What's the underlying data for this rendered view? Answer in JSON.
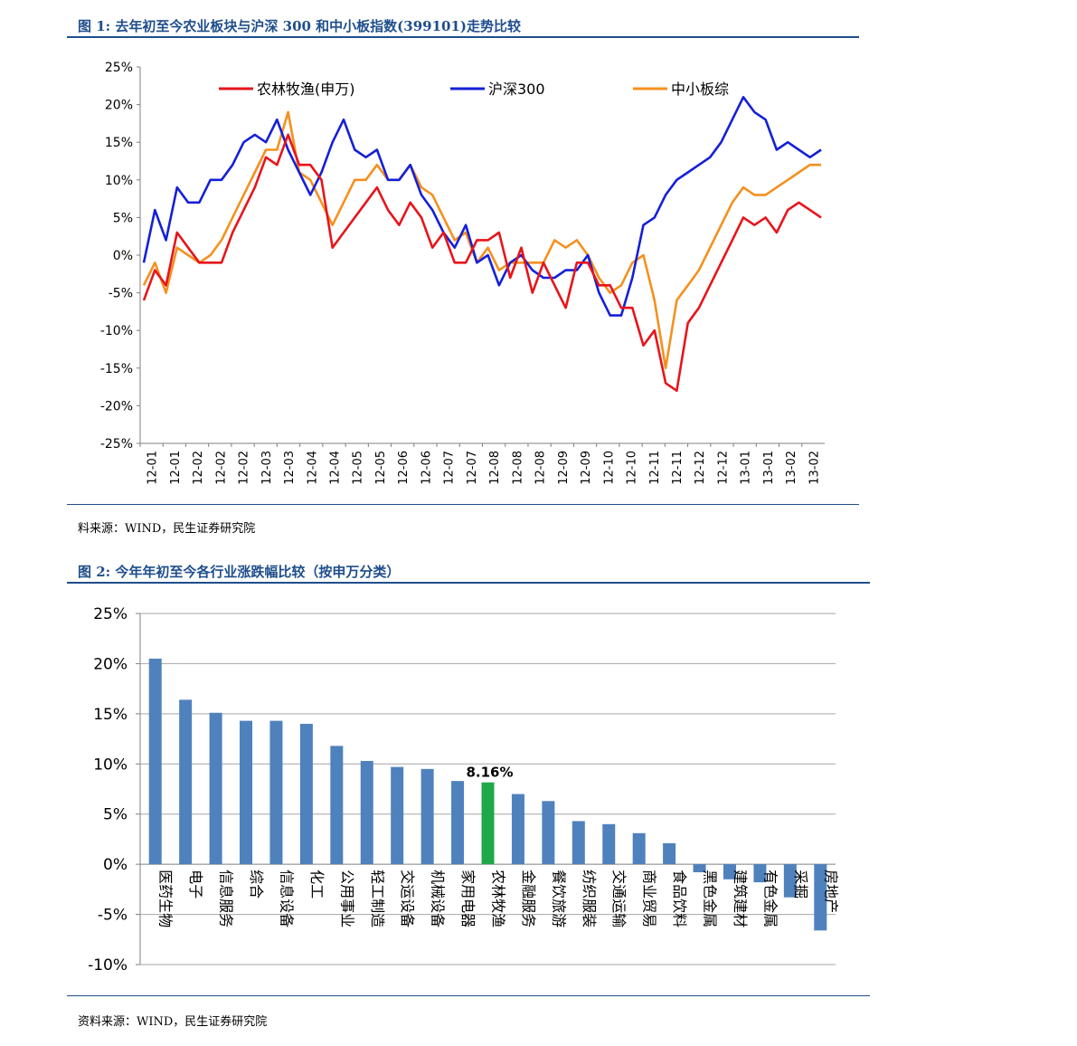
{
  "figure1": {
    "title": "图 1:  去年初至今农业板块与沪深 300 和中小板指数(399101)走势比较",
    "source": "料来源：WIND，民生证券研究院"
  },
  "figure2": {
    "title": "图 2:  今年年初至今各行业涨跌幅比较（按申万分类）",
    "source": "资料来源：WIND，民生证券研究院"
  },
  "chart_data": [
    {
      "type": "line",
      "ylim": [
        -25,
        25
      ],
      "y_ticks": [
        "25%",
        "20%",
        "15%",
        "10%",
        "5%",
        "0%",
        "-5%",
        "-10%",
        "-15%",
        "-20%",
        "-25%"
      ],
      "x_ticks": [
        "12-01",
        "12-01",
        "12-02",
        "12-02",
        "12-02",
        "12-03",
        "12-03",
        "12-04",
        "12-04",
        "12-05",
        "12-05",
        "12-06",
        "12-06",
        "12-07",
        "12-07",
        "12-08",
        "12-08",
        "12-08",
        "12-09",
        "12-09",
        "12-10",
        "12-10",
        "12-11",
        "12-11",
        "12-12",
        "12-12",
        "13-01",
        "13-01",
        "13-02",
        "13-02"
      ],
      "legend_position": "top",
      "series": [
        {
          "name": "农林牧渔(申万)",
          "color": "#e8141b",
          "values": [
            -6,
            -2,
            -4,
            3,
            1,
            -1,
            -1,
            -1,
            3,
            6,
            9,
            13,
            12,
            16,
            12,
            12,
            10,
            1,
            3,
            5,
            7,
            9,
            6,
            4,
            7,
            5,
            1,
            3,
            -1,
            -1,
            2,
            2,
            3,
            -3,
            1,
            -5,
            -1,
            -4,
            -7,
            -1,
            -1,
            -4,
            -4,
            -7,
            -7,
            -12,
            -10,
            -17,
            -18,
            -9,
            -7,
            -4,
            -1,
            2,
            5,
            4,
            5,
            3,
            6,
            7,
            6,
            5
          ]
        },
        {
          "name": "沪深300",
          "color": "#1520d8",
          "values": [
            -1,
            6,
            2,
            9,
            7,
            7,
            10,
            10,
            12,
            15,
            16,
            15,
            18,
            14,
            11,
            8,
            11,
            15,
            18,
            14,
            13,
            14,
            10,
            10,
            12,
            8,
            6,
            3,
            1,
            4,
            -1,
            0,
            -4,
            -1,
            0,
            -2,
            -3,
            -3,
            -2,
            -2,
            0,
            -5,
            -8,
            -8,
            -3,
            4,
            5,
            8,
            10,
            11,
            12,
            13,
            15,
            18,
            21,
            19,
            18,
            14,
            15,
            14,
            13,
            14
          ]
        },
        {
          "name": "中小板综",
          "color": "#f5901e",
          "values": [
            -4,
            -1,
            -5,
            1,
            0,
            -1,
            0,
            2,
            5,
            8,
            11,
            14,
            14,
            19,
            11,
            10,
            7,
            4,
            7,
            10,
            10,
            12,
            10,
            10,
            12,
            9,
            8,
            5,
            2,
            3,
            -1,
            1,
            -2,
            -1,
            -1,
            -1,
            -1,
            2,
            1,
            2,
            0,
            -3,
            -5,
            -4,
            -1,
            0,
            -6,
            -15,
            -6,
            -4,
            -2,
            1,
            4,
            7,
            9,
            8,
            8,
            9,
            10,
            11,
            12,
            12
          ]
        }
      ]
    },
    {
      "type": "bar",
      "ylim": [
        -10,
        25
      ],
      "y_ticks": [
        "25%",
        "20%",
        "15%",
        "10%",
        "5%",
        "0%",
        "-5%",
        "-10%"
      ],
      "bar_color": "#4f81bd",
      "highlight_color": "#1fa84a",
      "highlight_index": 11,
      "highlight_label": "8.16%",
      "categories": [
        "医药生物",
        "电子",
        "信息服务",
        "综合",
        "信息设备",
        "化工",
        "公用事业",
        "轻工制造",
        "交运设备",
        "机械设备",
        "家用电器",
        "农林牧渔",
        "金融服务",
        "餐饮旅游",
        "纺织服装",
        "交通运输",
        "商业贸易",
        "食品饮料",
        "黑色金属",
        "建筑建材",
        "有色金属",
        "采掘",
        "房地产"
      ],
      "values": [
        20.5,
        16.4,
        15.1,
        14.3,
        14.3,
        14.0,
        11.8,
        10.3,
        9.7,
        9.5,
        8.3,
        8.16,
        7.0,
        6.3,
        4.3,
        4.0,
        3.1,
        2.1,
        -0.8,
        -1.5,
        -1.8,
        -3.3,
        -6.6
      ]
    }
  ]
}
